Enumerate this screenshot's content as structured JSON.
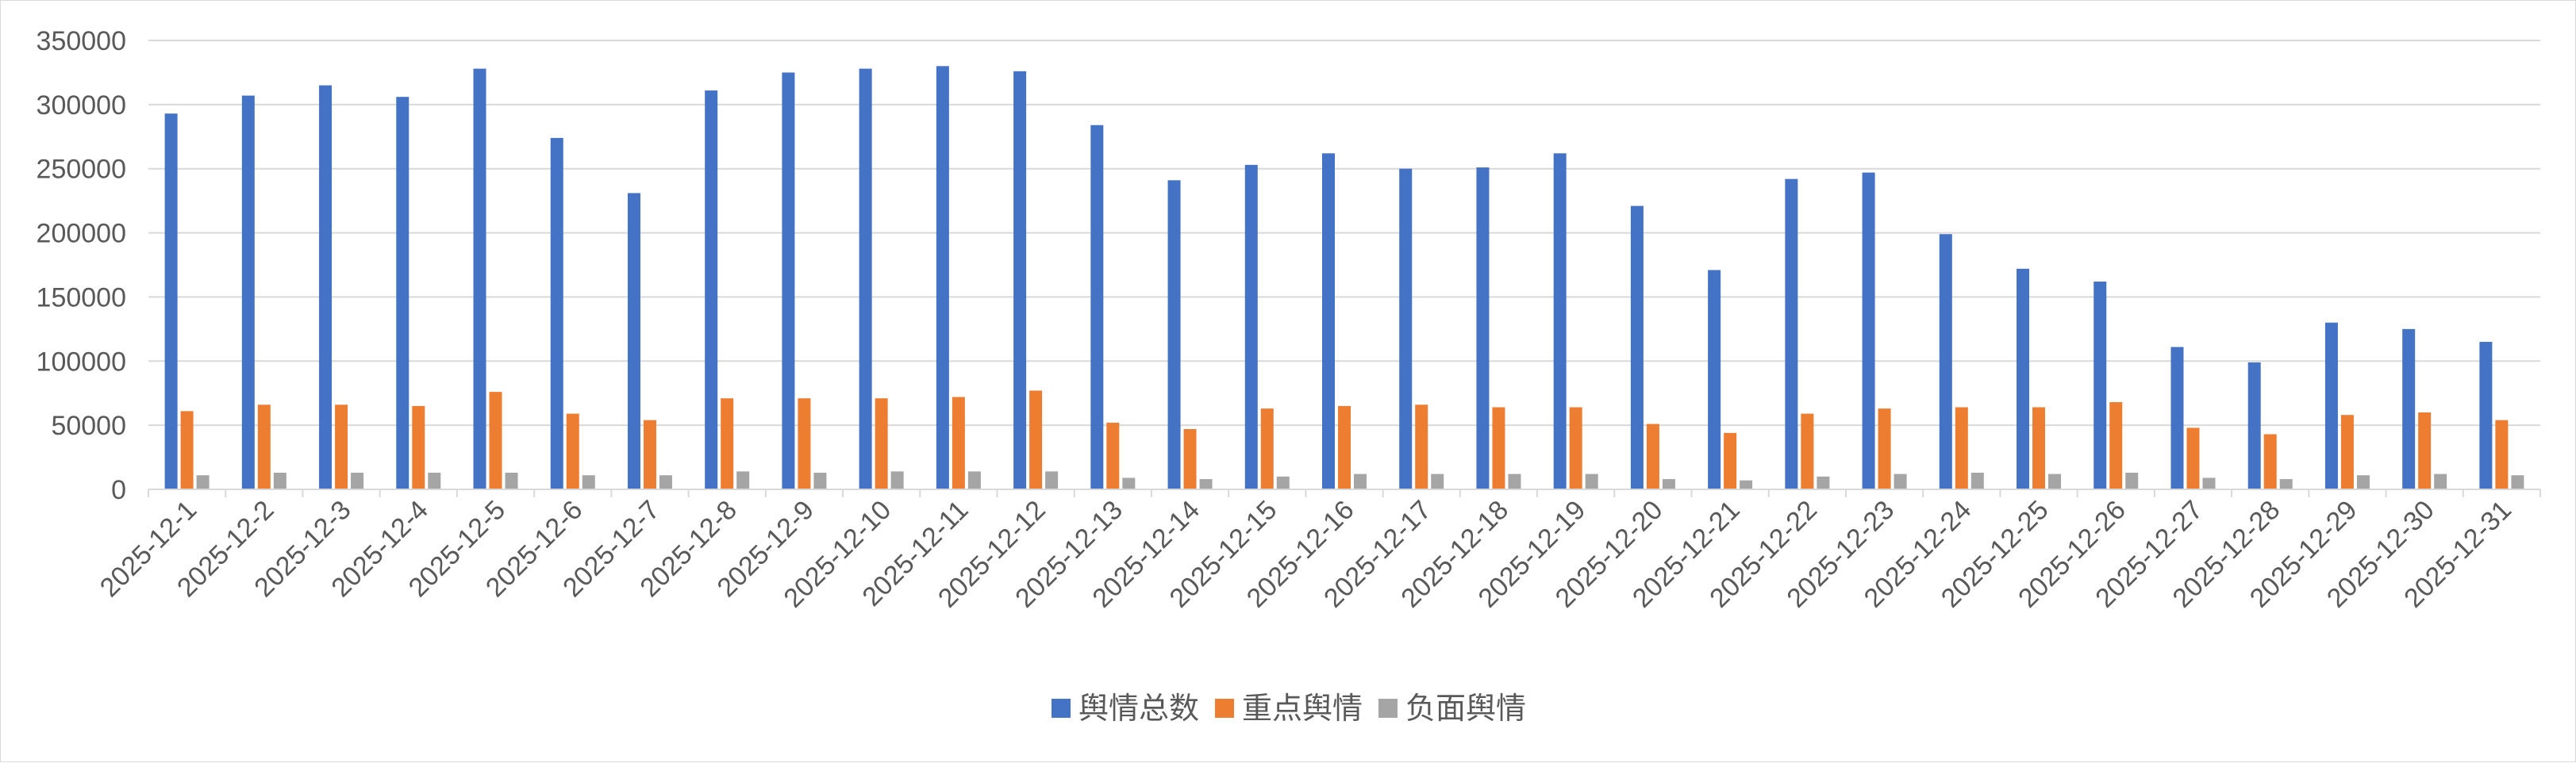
{
  "chart_data": {
    "type": "bar",
    "title": "",
    "xlabel": "",
    "ylabel": "",
    "ylim": [
      0,
      350000
    ],
    "yticks": [
      0,
      50000,
      100000,
      150000,
      200000,
      250000,
      300000,
      350000
    ],
    "grid": true,
    "legend_position": "bottom",
    "categories": [
      "2025-12-1",
      "2025-12-2",
      "2025-12-3",
      "2025-12-4",
      "2025-12-5",
      "2025-12-6",
      "2025-12-7",
      "2025-12-8",
      "2025-12-9",
      "2025-12-10",
      "2025-12-11",
      "2025-12-12",
      "2025-12-13",
      "2025-12-14",
      "2025-12-15",
      "2025-12-16",
      "2025-12-17",
      "2025-12-18",
      "2025-12-19",
      "2025-12-20",
      "2025-12-21",
      "2025-12-22",
      "2025-12-23",
      "2025-12-24",
      "2025-12-25",
      "2025-12-26",
      "2025-12-27",
      "2025-12-28",
      "2025-12-29",
      "2025-12-30",
      "2025-12-31"
    ],
    "series": [
      {
        "name": "舆情总数",
        "color": "#4472c4",
        "values": [
          293000,
          307000,
          315000,
          306000,
          328000,
          274000,
          231000,
          311000,
          325000,
          328000,
          330000,
          326000,
          284000,
          241000,
          253000,
          262000,
          250000,
          251000,
          262000,
          221000,
          171000,
          242000,
          247000,
          199000,
          172000,
          162000,
          111000,
          99000,
          130000,
          125000,
          115000
        ]
      },
      {
        "name": "重点舆情",
        "color": "#ed7d31",
        "values": [
          61000,
          66000,
          66000,
          65000,
          76000,
          59000,
          54000,
          71000,
          71000,
          71000,
          72000,
          77000,
          52000,
          47000,
          63000,
          65000,
          66000,
          64000,
          64000,
          51000,
          44000,
          59000,
          63000,
          64000,
          64000,
          68000,
          48000,
          43000,
          58000,
          60000,
          54000
        ]
      },
      {
        "name": "负面舆情",
        "color": "#a5a5a5",
        "values": [
          11000,
          13000,
          13000,
          13000,
          13000,
          11000,
          11000,
          14000,
          13000,
          14000,
          14000,
          14000,
          9000,
          8000,
          10000,
          12000,
          12000,
          12000,
          12000,
          8000,
          7000,
          10000,
          12000,
          13000,
          12000,
          13000,
          9000,
          8000,
          11000,
          12000,
          11000
        ]
      }
    ]
  }
}
